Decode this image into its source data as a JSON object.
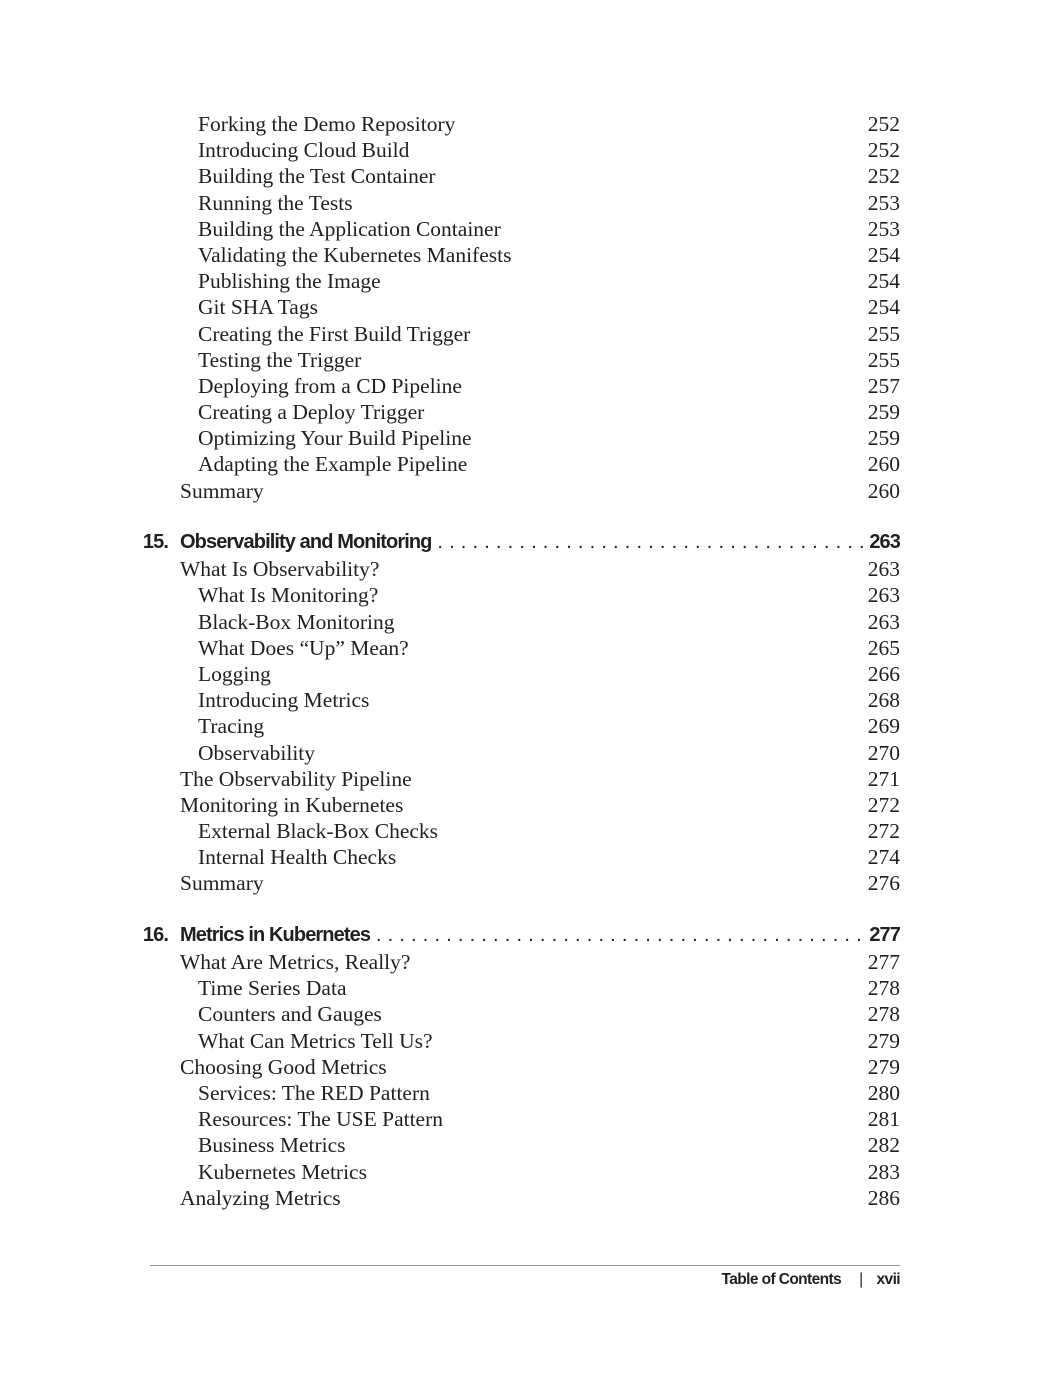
{
  "entries": [
    {
      "type": "entry",
      "level": 2,
      "title": "Forking the Demo Repository",
      "page": "252"
    },
    {
      "type": "entry",
      "level": 2,
      "title": "Introducing Cloud Build",
      "page": "252"
    },
    {
      "type": "entry",
      "level": 2,
      "title": "Building the Test Container",
      "page": "252"
    },
    {
      "type": "entry",
      "level": 2,
      "title": "Running the Tests",
      "page": "253"
    },
    {
      "type": "entry",
      "level": 2,
      "title": "Building the Application Container",
      "page": "253"
    },
    {
      "type": "entry",
      "level": 2,
      "title": "Validating the Kubernetes Manifests",
      "page": "254"
    },
    {
      "type": "entry",
      "level": 2,
      "title": "Publishing the Image",
      "page": "254"
    },
    {
      "type": "entry",
      "level": 2,
      "title": "Git SHA Tags",
      "page": "254"
    },
    {
      "type": "entry",
      "level": 2,
      "title": "Creating the First Build Trigger",
      "page": "255"
    },
    {
      "type": "entry",
      "level": 2,
      "title": "Testing the Trigger",
      "page": "255"
    },
    {
      "type": "entry",
      "level": 2,
      "title": "Deploying from a CD Pipeline",
      "page": "257"
    },
    {
      "type": "entry",
      "level": 2,
      "title": "Creating a Deploy Trigger",
      "page": "259"
    },
    {
      "type": "entry",
      "level": 2,
      "title": "Optimizing Your Build Pipeline",
      "page": "259"
    },
    {
      "type": "entry",
      "level": 2,
      "title": "Adapting the Example Pipeline",
      "page": "260"
    },
    {
      "type": "entry",
      "level": 1,
      "title": "Summary",
      "page": "260"
    },
    {
      "type": "chapter",
      "number": "15.",
      "title": "Observability and Monitoring",
      "page": "263"
    },
    {
      "type": "entry",
      "level": 1,
      "title": "What Is Observability?",
      "page": "263"
    },
    {
      "type": "entry",
      "level": 2,
      "title": "What Is Monitoring?",
      "page": "263"
    },
    {
      "type": "entry",
      "level": 2,
      "title": "Black-Box Monitoring",
      "page": "263"
    },
    {
      "type": "entry",
      "level": 2,
      "title": "What Does “Up” Mean?",
      "page": "265"
    },
    {
      "type": "entry",
      "level": 2,
      "title": "Logging",
      "page": "266"
    },
    {
      "type": "entry",
      "level": 2,
      "title": "Introducing Metrics",
      "page": "268"
    },
    {
      "type": "entry",
      "level": 2,
      "title": "Tracing",
      "page": "269"
    },
    {
      "type": "entry",
      "level": 2,
      "title": "Observability",
      "page": "270"
    },
    {
      "type": "entry",
      "level": 1,
      "title": "The Observability Pipeline",
      "page": "271"
    },
    {
      "type": "entry",
      "level": 1,
      "title": "Monitoring in Kubernetes",
      "page": "272"
    },
    {
      "type": "entry",
      "level": 2,
      "title": "External Black-Box Checks",
      "page": "272"
    },
    {
      "type": "entry",
      "level": 2,
      "title": "Internal Health Checks",
      "page": "274"
    },
    {
      "type": "entry",
      "level": 1,
      "title": "Summary",
      "page": "276"
    },
    {
      "type": "chapter",
      "number": "16.",
      "title": "Metrics in Kubernetes",
      "page": "277"
    },
    {
      "type": "entry",
      "level": 1,
      "title": "What Are Metrics, Really?",
      "page": "277"
    },
    {
      "type": "entry",
      "level": 2,
      "title": "Time Series Data",
      "page": "278"
    },
    {
      "type": "entry",
      "level": 2,
      "title": "Counters and Gauges",
      "page": "278"
    },
    {
      "type": "entry",
      "level": 2,
      "title": "What Can Metrics Tell Us?",
      "page": "279"
    },
    {
      "type": "entry",
      "level": 1,
      "title": "Choosing Good Metrics",
      "page": "279"
    },
    {
      "type": "entry",
      "level": 2,
      "title": "Services: The RED Pattern",
      "page": "280"
    },
    {
      "type": "entry",
      "level": 2,
      "title": "Resources: The USE Pattern",
      "page": "281"
    },
    {
      "type": "entry",
      "level": 2,
      "title": "Business Metrics",
      "page": "282"
    },
    {
      "type": "entry",
      "level": 2,
      "title": "Kubernetes Metrics",
      "page": "283"
    },
    {
      "type": "entry",
      "level": 1,
      "title": "Analyzing Metrics",
      "page": "286"
    }
  ],
  "footer": {
    "section": "Table of Contents",
    "separator": "|",
    "page": "xvii"
  },
  "colors": {
    "text": "#231f20",
    "rule": "#8e90c0"
  }
}
